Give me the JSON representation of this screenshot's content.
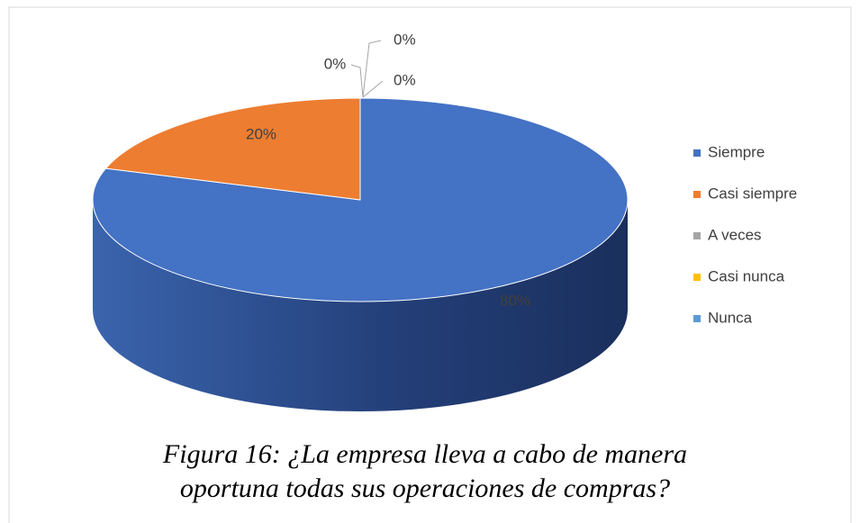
{
  "chart_data": {
    "type": "pie3d",
    "categories": [
      "Siempre",
      "Casi siempre",
      "A veces",
      "Casi nunca",
      "Nunca"
    ],
    "values": [
      80,
      20,
      0,
      0,
      0
    ],
    "value_labels": [
      "80%",
      "20%",
      "0%",
      "0%",
      "0%"
    ],
    "colors": [
      "#4472c4",
      "#ed7d31",
      "#a5a5a5",
      "#ffc000",
      "#5b9bd5"
    ],
    "legend": "right",
    "caption": [
      "Figura 16: ¿La empresa lleva  a cabo de manera",
      "oportuna todas sus operaciones de compras?"
    ]
  }
}
